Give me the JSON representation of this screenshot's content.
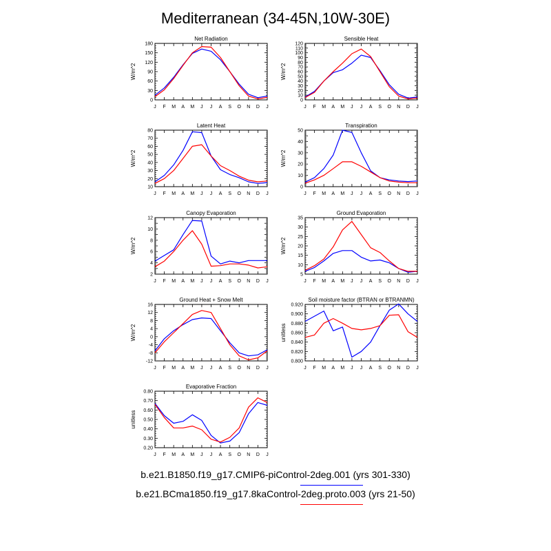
{
  "title": "Mediterranean (34-45N,10W-30E)",
  "months": [
    "J",
    "F",
    "M",
    "A",
    "M",
    "J",
    "J",
    "A",
    "S",
    "O",
    "N",
    "D",
    "J"
  ],
  "legend": [
    {
      "label": "b.e21.B1850.f19_g17.CMIP6-piControl-2deg.001 (yrs 301-330)",
      "color": "#0000ff"
    },
    {
      "label": "b.e21.BCma1850.f19_g17.8kaControl-2deg.proto.003 (yrs 21-50)",
      "color": "#ff0000"
    }
  ],
  "chart_data": [
    {
      "type": "line",
      "title": "Net Radiation",
      "ylabel": "W/m^2",
      "ylim": [
        0,
        180
      ],
      "yticks": [
        0,
        30,
        60,
        90,
        120,
        150,
        180
      ],
      "ytick_labels": [
        "0",
        "30",
        "60",
        "90",
        "120",
        "150",
        "180"
      ],
      "categories": [
        "J",
        "F",
        "M",
        "A",
        "M",
        "J",
        "J",
        "A",
        "S",
        "O",
        "N",
        "D",
        "J"
      ],
      "series": [
        {
          "name": "piControl",
          "color": "#0000ff",
          "values": [
            15,
            38,
            72,
            112,
            148,
            162,
            155,
            128,
            90,
            50,
            18,
            7,
            12
          ]
        },
        {
          "name": "8kaControl",
          "color": "#ff0000",
          "values": [
            10,
            32,
            68,
            110,
            150,
            170,
            168,
            135,
            90,
            45,
            12,
            3,
            8
          ]
        }
      ]
    },
    {
      "type": "line",
      "title": "Sensible Heat",
      "ylabel": "W/m^2",
      "ylim": [
        0,
        120
      ],
      "yticks": [
        0,
        10,
        20,
        30,
        40,
        50,
        60,
        70,
        80,
        90,
        100,
        110,
        120
      ],
      "ytick_labels": [
        "0",
        "10",
        "20",
        "30",
        "40",
        "50",
        "60",
        "70",
        "80",
        "90",
        "100",
        "110",
        "120"
      ],
      "categories": [
        "J",
        "F",
        "M",
        "A",
        "M",
        "J",
        "J",
        "A",
        "S",
        "O",
        "N",
        "D",
        "J"
      ],
      "series": [
        {
          "name": "piControl",
          "color": "#0000ff",
          "values": [
            6,
            18,
            40,
            58,
            64,
            78,
            95,
            90,
            62,
            32,
            12,
            4,
            6
          ]
        },
        {
          "name": "8kaControl",
          "color": "#ff0000",
          "values": [
            5,
            16,
            40,
            60,
            78,
            98,
            108,
            92,
            60,
            28,
            8,
            2,
            4
          ]
        }
      ]
    },
    {
      "type": "line",
      "title": "Latent Heat",
      "ylabel": "W/m^2",
      "ylim": [
        10,
        80
      ],
      "yticks": [
        10,
        20,
        30,
        40,
        50,
        60,
        70,
        80
      ],
      "ytick_labels": [
        "10",
        "20",
        "30",
        "40",
        "50",
        "60",
        "70",
        "80"
      ],
      "categories": [
        "J",
        "F",
        "M",
        "A",
        "M",
        "J",
        "J",
        "A",
        "S",
        "O",
        "N",
        "D",
        "J"
      ],
      "series": [
        {
          "name": "piControl",
          "color": "#0000ff",
          "values": [
            16,
            24,
            37,
            55,
            78,
            77,
            48,
            31,
            25,
            21,
            16,
            14,
            15
          ]
        },
        {
          "name": "8kaControl",
          "color": "#ff0000",
          "values": [
            14,
            20,
            30,
            45,
            60,
            62,
            48,
            36,
            30,
            23,
            18,
            16,
            17
          ]
        }
      ]
    },
    {
      "type": "line",
      "title": "Transpiration",
      "ylabel": "W/m^2",
      "ylim": [
        0,
        50
      ],
      "yticks": [
        0,
        5,
        10,
        15,
        20,
        25,
        30,
        35,
        40,
        45,
        50
      ],
      "ytick_labels": [
        "0",
        "",
        "10",
        "",
        "20",
        "",
        "30",
        "",
        "40",
        "",
        "50"
      ],
      "categories": [
        "J",
        "F",
        "M",
        "A",
        "M",
        "J",
        "J",
        "A",
        "S",
        "O",
        "N",
        "D",
        "J"
      ],
      "series": [
        {
          "name": "piControl",
          "color": "#0000ff",
          "values": [
            4,
            8,
            16,
            28,
            50,
            48,
            30,
            14,
            8,
            6,
            5,
            4.5,
            5
          ]
        },
        {
          "name": "8kaControl",
          "color": "#ff0000",
          "values": [
            3,
            6,
            10,
            16,
            22,
            22,
            18,
            13,
            8,
            5,
            4,
            3.5,
            3.5
          ]
        }
      ]
    },
    {
      "type": "line",
      "title": "Canopy Evaporation",
      "ylabel": "W/m^2",
      "ylim": [
        2,
        12
      ],
      "yticks": [
        2,
        3,
        4,
        5,
        6,
        7,
        8,
        9,
        10,
        11,
        12
      ],
      "ytick_labels": [
        "2",
        "",
        "4",
        "",
        "6",
        "",
        "8",
        "",
        "10",
        "",
        "12"
      ],
      "categories": [
        "J",
        "F",
        "M",
        "A",
        "M",
        "J",
        "J",
        "A",
        "S",
        "O",
        "N",
        "D",
        "J"
      ],
      "series": [
        {
          "name": "piControl",
          "color": "#0000ff",
          "values": [
            4.3,
            5.3,
            6.3,
            9.0,
            11.5,
            11.4,
            5.2,
            3.8,
            4.3,
            4.0,
            4.4,
            4.4,
            4.4
          ]
        },
        {
          "name": "8kaControl",
          "color": "#ff0000",
          "values": [
            3.3,
            4.3,
            6.0,
            8.0,
            9.7,
            7.3,
            3.4,
            3.5,
            3.8,
            3.8,
            3.6,
            3.1,
            3.3
          ]
        }
      ]
    },
    {
      "type": "line",
      "title": "Ground Evaporation",
      "ylabel": "W/m^2",
      "ylim": [
        5,
        35
      ],
      "yticks": [
        5,
        10,
        15,
        20,
        25,
        30,
        35
      ],
      "ytick_labels": [
        "5",
        "10",
        "15",
        "20",
        "25",
        "30",
        "35"
      ],
      "categories": [
        "J",
        "F",
        "M",
        "A",
        "M",
        "J",
        "J",
        "A",
        "S",
        "O",
        "N",
        "D",
        "J"
      ],
      "series": [
        {
          "name": "piControl",
          "color": "#0000ff",
          "values": [
            6.5,
            8.5,
            12,
            16,
            17.5,
            17.5,
            14,
            12,
            12.5,
            11,
            8,
            6,
            6.5
          ]
        },
        {
          "name": "8kaControl",
          "color": "#ff0000",
          "values": [
            7,
            9.5,
            13,
            19.5,
            28.5,
            33,
            26,
            19,
            16.5,
            12,
            8,
            6.5,
            6.5
          ]
        }
      ]
    },
    {
      "type": "line",
      "title": "Ground Heat + Snow Melt",
      "ylabel": "W/m^2",
      "ylim": [
        -12,
        16
      ],
      "yticks": [
        -12,
        -8,
        -4,
        0,
        4,
        8,
        12,
        16
      ],
      "ytick_labels": [
        "-12",
        "-8",
        "-4",
        "0",
        "4",
        "8",
        "12",
        "16"
      ],
      "categories": [
        "J",
        "F",
        "M",
        "A",
        "M",
        "J",
        "J",
        "A",
        "S",
        "O",
        "N",
        "D",
        "J"
      ],
      "series": [
        {
          "name": "piControl",
          "color": "#0000ff",
          "values": [
            -7,
            -1,
            3,
            6,
            8.5,
            9.3,
            9,
            3,
            -3,
            -8,
            -9.5,
            -9,
            -6.5
          ]
        },
        {
          "name": "8kaControl",
          "color": "#ff0000",
          "values": [
            -8,
            -2.5,
            2,
            6.5,
            11,
            13,
            12,
            4,
            -4,
            -9.5,
            -11.5,
            -10.5,
            -7
          ]
        }
      ]
    },
    {
      "type": "line",
      "title": "Soil moisture factor (BTRAN or BTRANMN)",
      "ylabel": "unitless",
      "ylim": [
        0.8,
        0.92
      ],
      "yticks": [
        0.8,
        0.82,
        0.84,
        0.86,
        0.88,
        0.9,
        0.92
      ],
      "ytick_labels": [
        "0.800",
        "0.820",
        "0.840",
        "0.860",
        "0.880",
        "0.900",
        "0.920"
      ],
      "categories": [
        "J",
        "F",
        "M",
        "A",
        "M",
        "J",
        "J",
        "A",
        "S",
        "O",
        "N",
        "D",
        "J"
      ],
      "series": [
        {
          "name": "piControl",
          "color": "#0000ff",
          "values": [
            0.884,
            0.895,
            0.906,
            0.864,
            0.872,
            0.808,
            0.82,
            0.84,
            0.875,
            0.908,
            0.921,
            0.9,
            0.884
          ]
        },
        {
          "name": "8kaControl",
          "color": "#ff0000",
          "values": [
            0.85,
            0.855,
            0.88,
            0.89,
            0.88,
            0.869,
            0.866,
            0.869,
            0.875,
            0.897,
            0.898,
            0.862,
            0.85
          ]
        }
      ]
    },
    {
      "type": "line",
      "title": "Evaporative Fraction",
      "ylabel": "unitless",
      "ylim": [
        0.2,
        0.8
      ],
      "yticks": [
        0.2,
        0.3,
        0.4,
        0.5,
        0.6,
        0.7,
        0.8
      ],
      "ytick_labels": [
        "0.20",
        "0.30",
        "0.40",
        "0.50",
        "0.60",
        "0.70",
        "0.80"
      ],
      "categories": [
        "J",
        "F",
        "M",
        "A",
        "M",
        "J",
        "J",
        "A",
        "S",
        "O",
        "N",
        "D",
        "J"
      ],
      "series": [
        {
          "name": "piControl",
          "color": "#0000ff",
          "values": [
            0.67,
            0.54,
            0.46,
            0.48,
            0.55,
            0.49,
            0.33,
            0.25,
            0.27,
            0.36,
            0.56,
            0.68,
            0.65
          ]
        },
        {
          "name": "8kaControl",
          "color": "#ff0000",
          "values": [
            0.66,
            0.52,
            0.41,
            0.41,
            0.43,
            0.39,
            0.29,
            0.26,
            0.31,
            0.41,
            0.63,
            0.73,
            0.68
          ]
        }
      ]
    }
  ]
}
